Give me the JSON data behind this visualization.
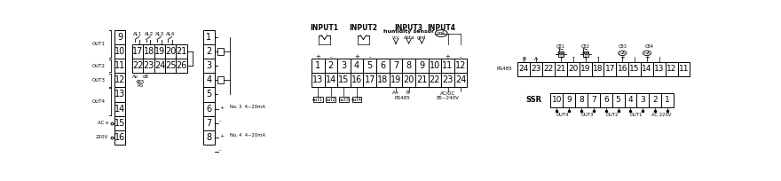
{
  "bg_color": "#ffffff",
  "lc": "#000000",
  "left_nums": [
    "9",
    "10",
    "11",
    "12",
    "13",
    "14",
    "15",
    "16"
  ],
  "al_row1": [
    "17",
    "18",
    "19",
    "20",
    "21"
  ],
  "al_row2": [
    "22",
    "23",
    "24",
    "25",
    "26"
  ],
  "al_labels": [
    "AL1",
    "AL2",
    "AL3",
    "AL4"
  ],
  "right_col": [
    "1",
    "2",
    "3",
    "4",
    "5",
    "6",
    "7",
    "8"
  ],
  "inp_row1": [
    "1",
    "2",
    "3",
    "4",
    "5",
    "6",
    "7",
    "8",
    "9",
    "10",
    "11",
    "12"
  ],
  "inp_row2": [
    "13",
    "14",
    "15",
    "16",
    "17",
    "18",
    "19",
    "20",
    "21",
    "22",
    "23",
    "24"
  ],
  "input_labels": [
    "INPUT1",
    "INPUT2",
    "INPUT3",
    "INPUT4"
  ],
  "tr_nums": [
    "24",
    "23",
    "22",
    "21",
    "20",
    "19",
    "18",
    "17",
    "16",
    "15",
    "14",
    "13",
    "12",
    "11"
  ],
  "ssr_nums": [
    "10",
    "9",
    "8",
    "7",
    "6",
    "5",
    "4",
    "3",
    "2",
    "1"
  ],
  "ssr_group_labels": [
    "OUT4",
    "OUT3",
    "OUT2",
    "OUT1",
    "AC 220V"
  ],
  "cb_labels": [
    "CB1",
    "CB2",
    "CB3",
    "CB4"
  ]
}
